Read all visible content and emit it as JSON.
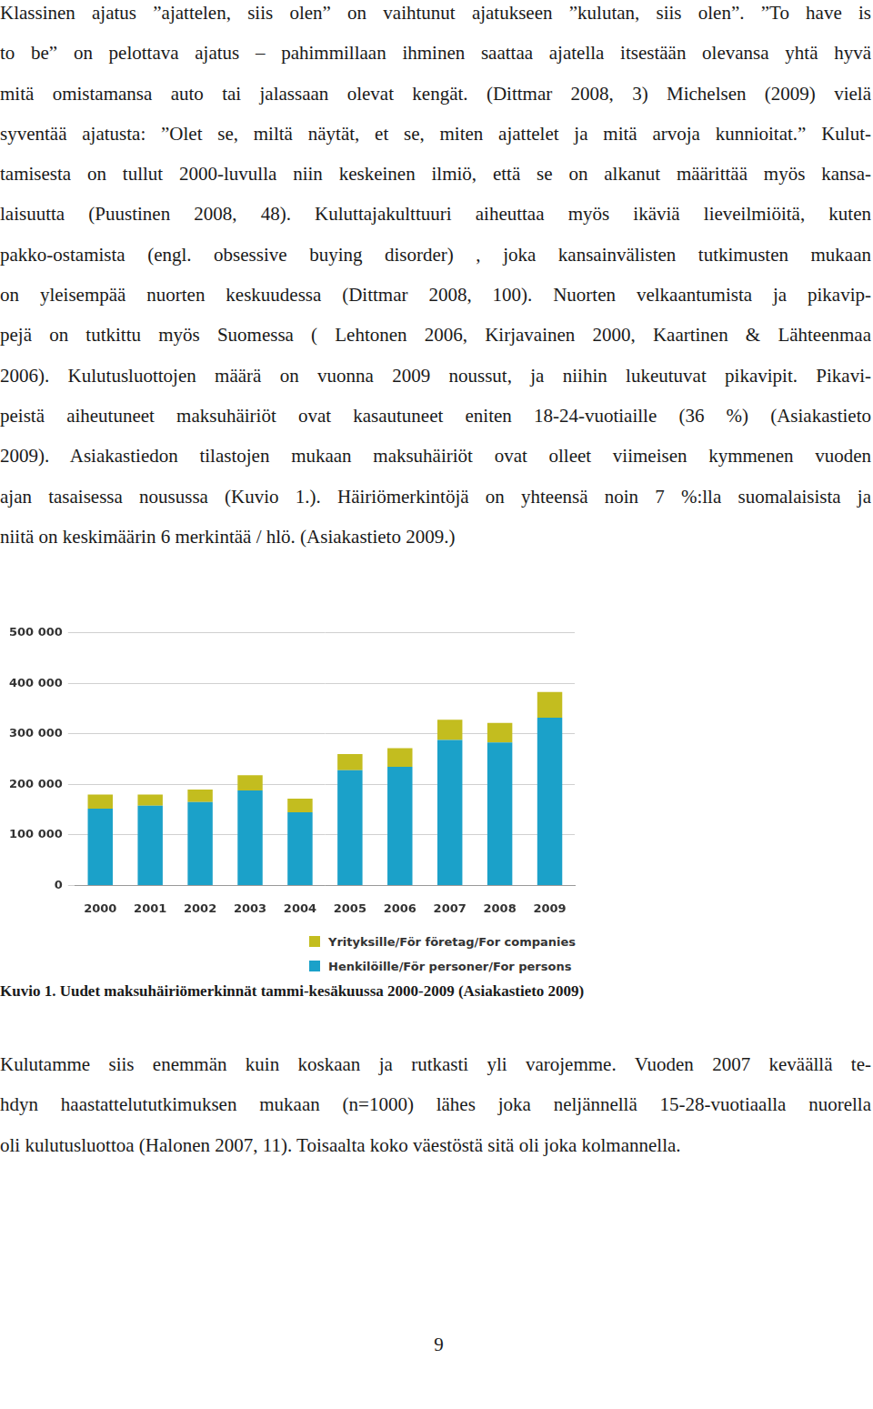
{
  "body_before": [
    "Klassinen ajatus ”ajattelen, siis olen” on vaihtunut ajatukseen ”kulutan, siis olen”. ”To have is",
    "to be” on pelottava ajatus – pahimmillaan ihminen saattaa ajatella itsestään olevansa yhtä hyvä",
    "mitä omistamansa auto tai jalassaan olevat kengät. (Dittmar 2008, 3) Michelsen (2009) vielä",
    "syventää ajatusta: ”Olet se, miltä näytät, et se, miten ajattelet ja mitä arvoja kunnioitat.” Kulut-",
    "tamisesta on tullut 2000-luvulla niin keskeinen ilmiö, että se on alkanut määrittää myös kansa-",
    "laisuutta (Puustinen 2008, 48). Kuluttajakulttuuri aiheuttaa myös ikäviä lieveilmiöitä, kuten",
    "pakko-ostamista (engl. obsessive buying disorder) , joka kansainvälisten tutkimusten mukaan",
    "on yleisempää nuorten keskuudessa (Dittmar 2008, 100). Nuorten velkaantumista ja pikavip-",
    "pejä on tutkittu myös Suomessa ( Lehtonen 2006, Kirjavainen 2000, Kaartinen & Lähteenmaa",
    "2006). Kulutusluottojen määrä on vuonna 2009 noussut, ja niihin lukeutuvat pikavipit. Pikavi-",
    "peistä aiheutuneet maksuhäiriöt ovat kasautuneet eniten 18-24-vuotiaille (36 %) (Asiakastieto",
    "2009). Asiakastiedon tilastojen mukaan maksuhäiriöt ovat olleet viimeisen kymmenen vuoden",
    "ajan tasaisessa nousussa (Kuvio 1.). Häiriömerkintöjä on yhteensä noin 7 %:lla suomalaisista ja",
    "niitä on keskimäärin 6 merkintää / hlö. (Asiakastieto 2009.)"
  ],
  "chart_data": {
    "type": "bar",
    "stacked": true,
    "categories": [
      "2000",
      "2001",
      "2002",
      "2003",
      "2004",
      "2005",
      "2006",
      "2007",
      "2008",
      "2009"
    ],
    "series": [
      {
        "name": "Henkilöille/För personer/For persons",
        "color": "#1ba1c9",
        "values": [
          152000,
          158000,
          165000,
          188000,
          145000,
          228000,
          235000,
          288000,
          283000,
          332000
        ]
      },
      {
        "name": "Yrityksille/För företag/For companies",
        "color": "#c3bd1f",
        "values": [
          28000,
          22000,
          25000,
          30000,
          27000,
          32000,
          37000,
          40000,
          39000,
          51000
        ]
      }
    ],
    "ylim": [
      0,
      500000
    ],
    "yticks": [
      0,
      {
        "value": 100000,
        "label": "100 000"
      },
      {
        "value": 200000,
        "label": "200 000"
      },
      {
        "value": 300000,
        "label": "300 000"
      },
      {
        "value": 400000,
        "label": "400 000"
      },
      {
        "value": 500000,
        "label": "500 000"
      }
    ],
    "grid": true,
    "legend": "bottom"
  },
  "caption": "Kuvio 1. Uudet maksuhäiriömerkinnät tammi-kesäkuussa 2000-2009 (Asiakastieto 2009)",
  "body_after": [
    "Kulutamme siis enemmän kuin koskaan ja rutkasti yli varojemme. Vuoden 2007 keväällä te-",
    "hdyn haastattelututkimuksen mukaan (n=1000) lähes joka neljännellä 15-28-vuotiaalla nuorella",
    "oli kulutusluottoa (Halonen 2007, 11). Toisaalta koko väestöstä sitä oli joka kolmannella."
  ],
  "page_number": 9
}
